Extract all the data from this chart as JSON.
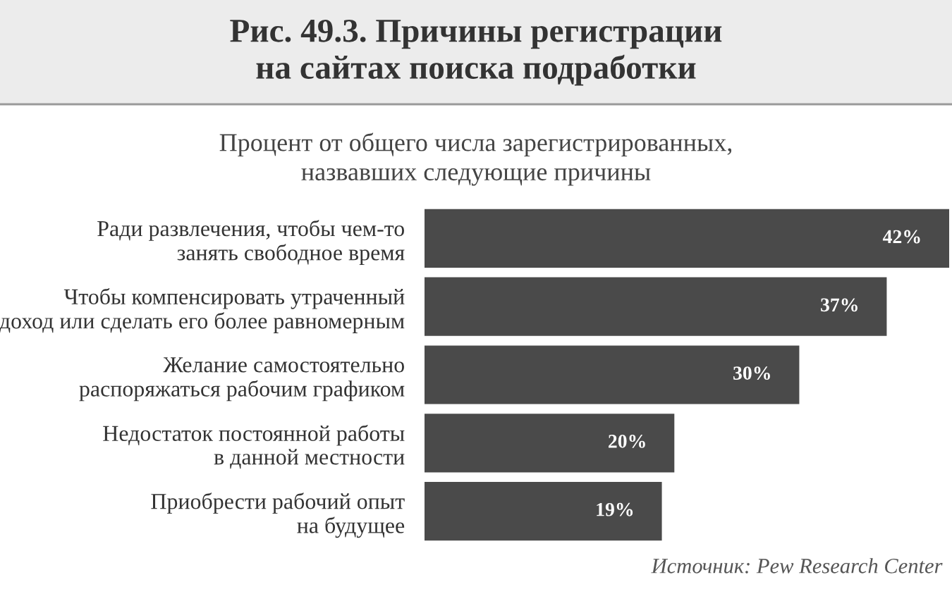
{
  "chart_data": {
    "type": "bar",
    "orientation": "horizontal",
    "title": "Рис. 49.3. Причины регистрации\nна сайтах поиска подработки",
    "subtitle": "Процент от общего числа зарегистрированных,\nназвавших следующие причины",
    "categories": [
      "Ради развлечения, чтобы чем-то\nзанять свободное время",
      "Чтобы компенсировать утраченный\nдоход или сделать его более равномерным",
      "Желание самостоятельно\nраспоряжаться рабочим графиком",
      "Недостаток постоянной работы\nв данной местности",
      "Приобрести рабочий опыт\nна будущее"
    ],
    "values": [
      42,
      37,
      30,
      20,
      19
    ],
    "color": "#4a4a4a",
    "value_labels": [
      "42%",
      "37%",
      "30%",
      "20%",
      "19%"
    ],
    "xlim": [
      0,
      42
    ],
    "tick_labels": false,
    "grid": false,
    "legend": false,
    "annotations": [
      "Источник: Pew Research Center"
    ]
  }
}
